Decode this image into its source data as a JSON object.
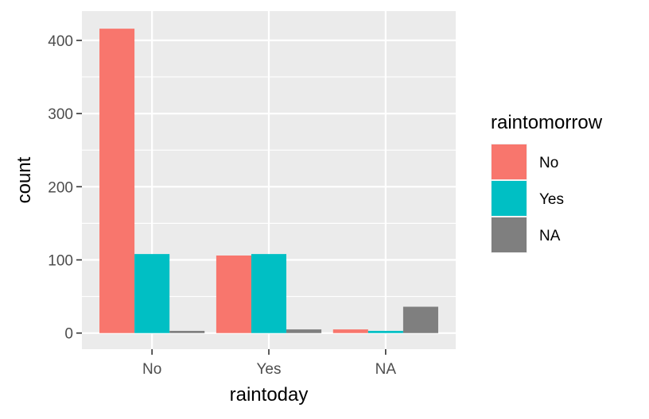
{
  "chart_data": {
    "type": "bar",
    "categories": [
      "No",
      "Yes",
      "NA"
    ],
    "series": [
      {
        "name": "No",
        "color": "#F8766D",
        "values": [
          416,
          106,
          5
        ]
      },
      {
        "name": "Yes",
        "color": "#00BFC4",
        "values": [
          108,
          108,
          3
        ]
      },
      {
        "name": "NA",
        "color": "#7F7F7F",
        "values": [
          3,
          5,
          36
        ]
      }
    ],
    "xlabel": "raintoday",
    "ylabel": "count",
    "ylim": [
      -22,
      440
    ],
    "yticks": [
      0,
      100,
      200,
      300,
      400
    ],
    "ytick_labels": [
      "0",
      "100",
      "200",
      "300",
      "400"
    ],
    "legend": {
      "title": "raintomorrow",
      "position": "right"
    },
    "grid": true,
    "panel_background": "#EBEBEB",
    "grid_color": "#FFFFFF"
  }
}
